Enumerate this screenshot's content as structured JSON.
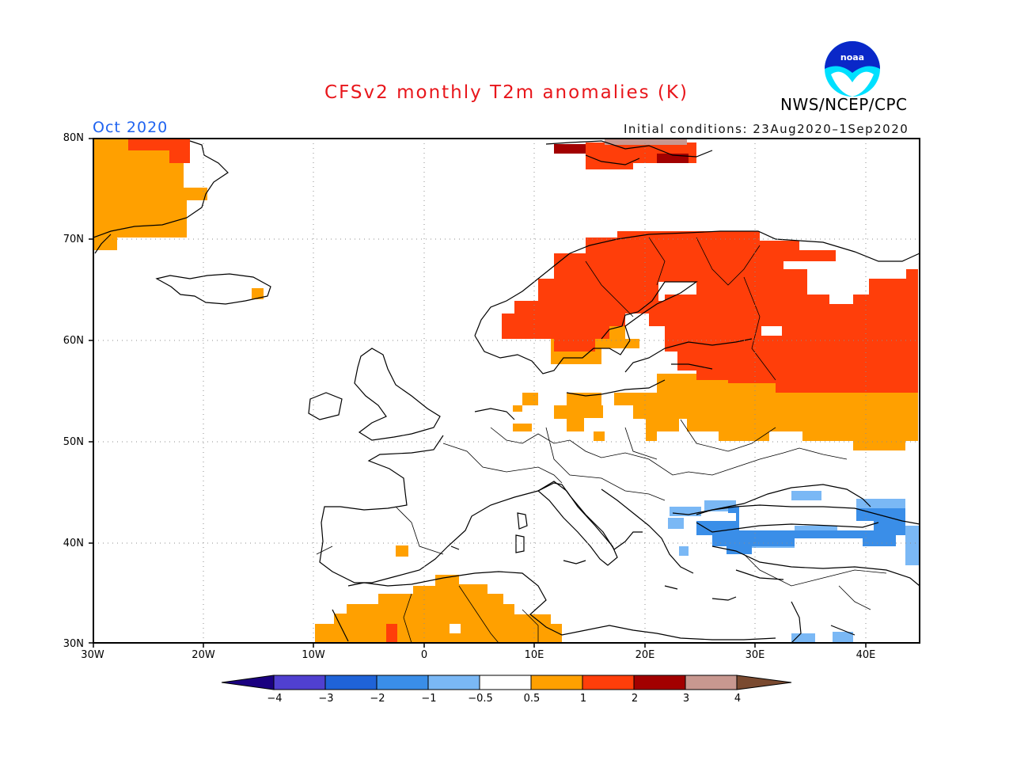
{
  "header": {
    "title": "CFSv2 monthly T2m anomalies (K)",
    "agency": "NWS/NCEP/CPC",
    "logo_text": "noaa",
    "valid_month": "Oct 2020",
    "initial_conditions": "Initial conditions: 23Aug2020–1Sep2020"
  },
  "map": {
    "lon_range": [
      -30,
      45
    ],
    "lat_range": [
      30,
      80
    ],
    "lat_labels": [
      "80N",
      "70N",
      "60N",
      "50N",
      "40N",
      "30N"
    ],
    "lon_labels": [
      "30W",
      "20W",
      "10W",
      "0",
      "10E",
      "20E",
      "30E",
      "40E"
    ],
    "grid_lines": "dotted"
  },
  "colorbar": {
    "tick_labels": [
      "−4",
      "−3",
      "−2",
      "−1",
      "−0.5",
      "0.5",
      "1",
      "2",
      "3",
      "4"
    ],
    "colors": [
      "#1a0080",
      "#5040d0",
      "#1f63d8",
      "#3a8ee8",
      "#7ab8f5",
      "#ffffff",
      "#ffa000",
      "#ff3e0a",
      "#a20000",
      "#c89890",
      "#7a4a30"
    ]
  },
  "anomaly_colors": {
    "0.5 to 1": "#ffa000",
    "1 to 2": "#ff3e0a",
    "2 to 3": "#a20000",
    "3 to 4": "#c89890",
    "-1 to -0.5": "#7ab8f5",
    "-2 to -1": "#3a8ee8"
  }
}
